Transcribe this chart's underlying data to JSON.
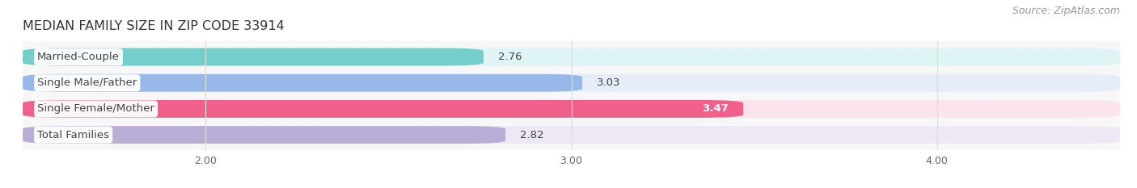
{
  "title": "MEDIAN FAMILY SIZE IN ZIP CODE 33914",
  "source": "Source: ZipAtlas.com",
  "categories": [
    "Married-Couple",
    "Single Male/Father",
    "Single Female/Mother",
    "Total Families"
  ],
  "values": [
    2.76,
    3.03,
    3.47,
    2.82
  ],
  "bar_colors": [
    "#74ceca",
    "#97b8e8",
    "#f0608a",
    "#bbaed6"
  ],
  "bar_bg_colors": [
    "#dff4f4",
    "#e4edf8",
    "#fce4ee",
    "#eee8f4"
  ],
  "xmin": 1.5,
  "xmax": 4.5,
  "xticks": [
    2.0,
    3.0,
    4.0
  ],
  "xtick_labels": [
    "2.00",
    "3.00",
    "4.00"
  ],
  "bar_height": 0.68,
  "label_fontsize": 9.5,
  "value_fontsize": 9.5,
  "title_fontsize": 11.5,
  "source_fontsize": 9,
  "bg_color": "#ffffff",
  "plot_bg_color": "#f7f7f7",
  "grid_color": "#dddddd",
  "text_color": "#444444",
  "source_color": "#999999"
}
